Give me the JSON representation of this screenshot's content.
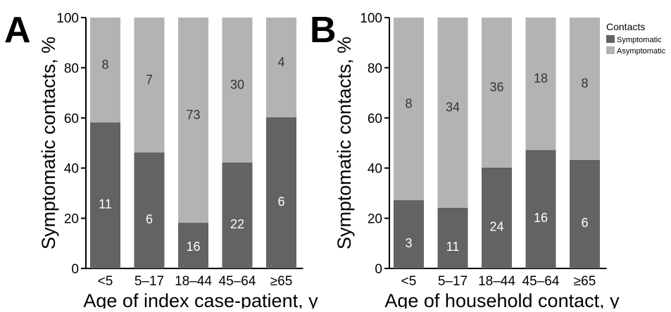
{
  "legend": {
    "title": "Contacts",
    "items": [
      {
        "label": "Symptomatic",
        "color": "#636363"
      },
      {
        "label": "Asymptomatic",
        "color": "#b3b3b3"
      }
    ]
  },
  "chart_data": [
    {
      "type": "bar",
      "stacked": true,
      "panel_label": "A",
      "title": "",
      "xlabel": "Age of index case-patient, y",
      "ylabel": "Symptomatic contacts, %",
      "ylim": [
        0,
        100
      ],
      "yticks": [
        0,
        20,
        40,
        60,
        80,
        100
      ],
      "categories": [
        "<5",
        "5–17",
        "18–44",
        "45–64",
        "≥65"
      ],
      "series": [
        {
          "name": "Symptomatic",
          "values": [
            58,
            46,
            18,
            42,
            60
          ],
          "labels": [
            "11",
            "6",
            "16",
            "22",
            "6"
          ],
          "color": "#636363"
        },
        {
          "name": "Asymptomatic",
          "values": [
            42,
            54,
            82,
            58,
            40
          ],
          "labels": [
            "8",
            "7",
            "73",
            "30",
            "4"
          ],
          "color": "#b3b3b3"
        }
      ]
    },
    {
      "type": "bar",
      "stacked": true,
      "panel_label": "B",
      "title": "",
      "xlabel": "Age of household contact, y",
      "ylabel": "Symptomatic contacts, %",
      "ylim": [
        0,
        100
      ],
      "yticks": [
        0,
        20,
        40,
        60,
        80,
        100
      ],
      "categories": [
        "<5",
        "5–17",
        "18–44",
        "45–64",
        "≥65"
      ],
      "series": [
        {
          "name": "Symptomatic",
          "values": [
            27,
            24,
            40,
            47,
            43
          ],
          "labels": [
            "3",
            "11",
            "24",
            "16",
            "6"
          ],
          "color": "#636363"
        },
        {
          "name": "Asymptomatic",
          "values": [
            73,
            76,
            60,
            53,
            57
          ],
          "labels": [
            "8",
            "34",
            "36",
            "18",
            "8"
          ],
          "color": "#b3b3b3"
        }
      ]
    }
  ]
}
